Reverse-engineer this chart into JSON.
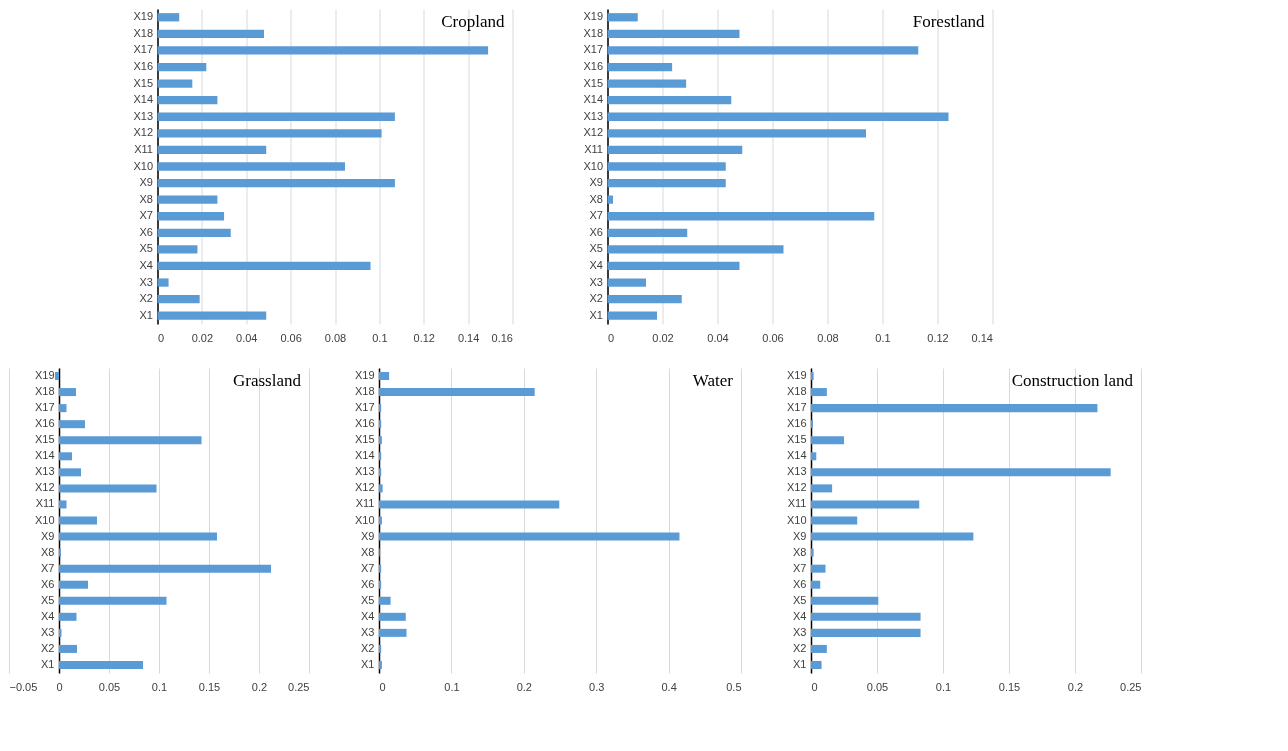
{
  "chart_data": [
    {
      "type": "bar",
      "orientation": "horizontal",
      "title": "Cropland",
      "categories": [
        "X19",
        "X18",
        "X17",
        "X16",
        "X15",
        "X14",
        "X13",
        "X12",
        "X11",
        "X10",
        "X9",
        "X8",
        "X7",
        "X6",
        "X5",
        "X4",
        "X3",
        "X2",
        "X1"
      ],
      "values": [
        0.0098,
        0.048,
        0.149,
        0.022,
        0.0157,
        0.027,
        0.107,
        0.101,
        0.049,
        0.0845,
        0.107,
        0.027,
        0.03,
        0.033,
        0.018,
        0.096,
        0.005,
        0.019,
        0.049
      ],
      "color": "#5b9bd5",
      "xlim": [
        0,
        0.16
      ],
      "xticks": [
        0,
        0.02,
        0.04,
        0.06,
        0.08,
        0.1,
        0.12,
        0.14,
        0.16
      ],
      "grid": "x"
    },
    {
      "type": "bar",
      "orientation": "horizontal",
      "title": "Forestland",
      "categories": [
        "X19",
        "X18",
        "X17",
        "X16",
        "X15",
        "X14",
        "X13",
        "X12",
        "X11",
        "X10",
        "X9",
        "X8",
        "X7",
        "X6",
        "X5",
        "X4",
        "X3",
        "X2",
        "X1"
      ],
      "values": [
        0.011,
        0.048,
        0.113,
        0.0235,
        0.0286,
        0.045,
        0.124,
        0.094,
        0.049,
        0.043,
        0.043,
        0.002,
        0.097,
        0.029,
        0.064,
        0.048,
        0.014,
        0.027,
        0.018
      ],
      "color": "#5b9bd5",
      "xlim": [
        0,
        0.14
      ],
      "xticks": [
        0,
        0.02,
        0.04,
        0.06,
        0.08,
        0.1,
        0.12,
        0.14
      ],
      "grid": "x"
    },
    {
      "type": "bar",
      "orientation": "horizontal",
      "title": "Grassland",
      "categories": [
        "X19",
        "X18",
        "X17",
        "X16",
        "X15",
        "X14",
        "X13",
        "X12",
        "X11",
        "X10",
        "X9",
        "X8",
        "X7",
        "X6",
        "X5",
        "X4",
        "X3",
        "X2",
        "X1"
      ],
      "values": [
        -0.004,
        0.017,
        0.0075,
        0.026,
        0.1425,
        0.013,
        0.022,
        0.0975,
        0.0075,
        0.038,
        0.158,
        0.002,
        0.212,
        0.029,
        0.1075,
        0.0175,
        0.0025,
        0.018,
        0.084
      ],
      "color": "#5b9bd5",
      "xlim": [
        -0.05,
        0.25
      ],
      "xticks": [
        -0.05,
        0,
        0.05,
        0.1,
        0.15,
        0.2,
        0.25
      ],
      "grid": "x"
    },
    {
      "type": "bar",
      "orientation": "horizontal",
      "title": "Water",
      "categories": [
        "X19",
        "X18",
        "X17",
        "X16",
        "X15",
        "X14",
        "X13",
        "X12",
        "X11",
        "X10",
        "X9",
        "X8",
        "X7",
        "X6",
        "X5",
        "X4",
        "X3",
        "X2",
        "X1"
      ],
      "values": [
        0.014,
        0.215,
        0.003,
        0.003,
        0.004,
        0.003,
        0.003,
        0.005,
        0.249,
        0.004,
        0.415,
        0.001,
        0.003,
        0.003,
        0.016,
        0.037,
        0.038,
        0.003,
        0.004
      ],
      "color": "#5b9bd5",
      "xlim": [
        0,
        0.5
      ],
      "xticks": [
        0,
        0.1,
        0.2,
        0.3,
        0.4,
        0.5
      ],
      "grid": "x"
    },
    {
      "type": "bar",
      "orientation": "horizontal",
      "title": "Construction land",
      "categories": [
        "X19",
        "X18",
        "X17",
        "X16",
        "X15",
        "X14",
        "X13",
        "X12",
        "X11",
        "X10",
        "X9",
        "X8",
        "X7",
        "X6",
        "X5",
        "X4",
        "X3",
        "X2",
        "X1"
      ],
      "values": [
        0.002,
        0.012,
        0.217,
        0.0015,
        0.025,
        0.004,
        0.227,
        0.016,
        0.082,
        0.035,
        0.123,
        0.002,
        0.011,
        0.007,
        0.051,
        0.083,
        0.083,
        0.012,
        0.008
      ],
      "color": "#5b9bd5",
      "xlim": [
        0,
        0.25
      ],
      "xticks": [
        0,
        0.05,
        0.1,
        0.15,
        0.2,
        0.25
      ],
      "grid": "x"
    }
  ]
}
